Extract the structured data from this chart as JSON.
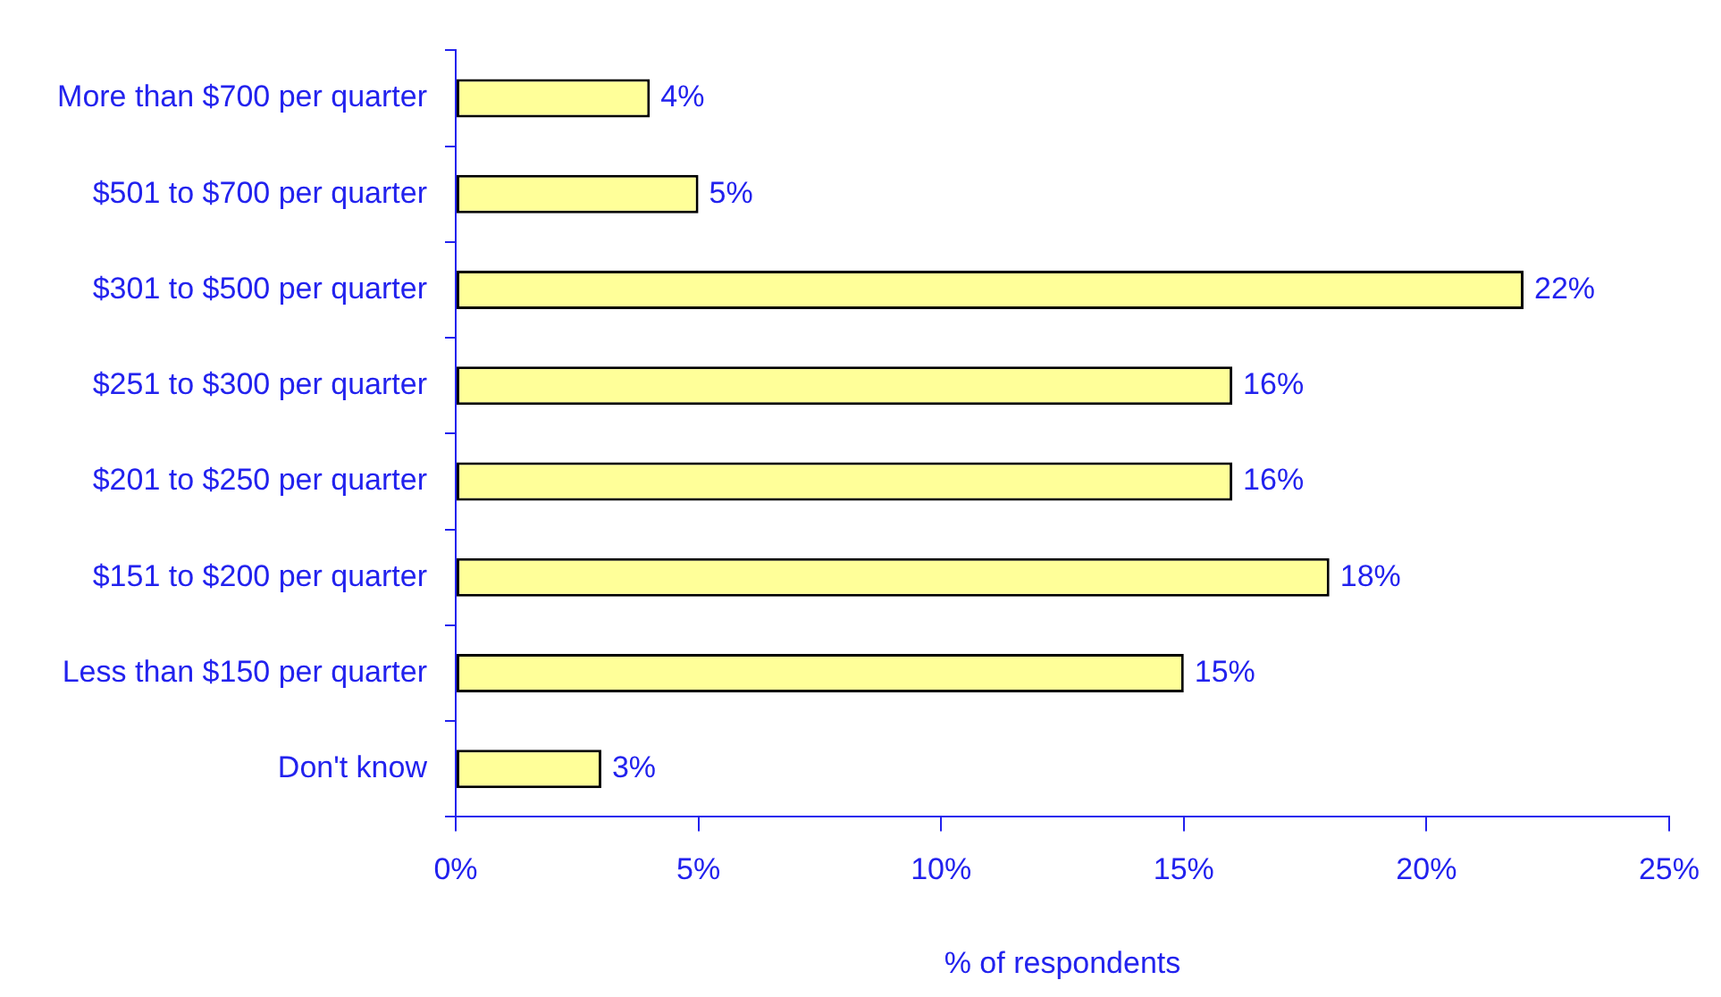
{
  "chart_data": {
    "type": "bar",
    "orientation": "horizontal",
    "xlabel": "% of respondents",
    "categories": [
      "More than $700 per quarter",
      "$501 to $700 per quarter",
      "$301 to $500 per quarter",
      "$251 to $300 per quarter",
      "$201 to $250 per quarter",
      "$151 to $200 per quarter",
      "Less than $150 per quarter",
      "Don't know"
    ],
    "values": [
      4,
      5,
      22,
      16,
      16,
      18,
      15,
      3
    ],
    "value_labels": [
      "4%",
      "5%",
      "22%",
      "16%",
      "16%",
      "18%",
      "15%",
      "3%"
    ],
    "color": "#ffff99",
    "xlim": [
      0,
      25
    ],
    "xticks": [
      {
        "value": 0,
        "label": "0%"
      },
      {
        "value": 5,
        "label": "5%"
      },
      {
        "value": 10,
        "label": "10%"
      },
      {
        "value": 15,
        "label": "15%"
      },
      {
        "value": 20,
        "label": "20%"
      },
      {
        "value": 25,
        "label": "25%"
      }
    ],
    "grid": false,
    "legend": false
  }
}
